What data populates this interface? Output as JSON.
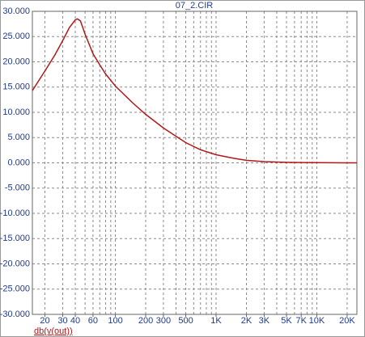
{
  "chart_data": {
    "type": "line",
    "title": "07_2.CIR",
    "x_label": "db(v(out))",
    "x_scale": "log",
    "grid": true,
    "xlim": [
      15,
      25000
    ],
    "ylim": [
      -30,
      30
    ],
    "xticks": [
      20,
      30,
      40,
      60,
      100,
      200,
      300,
      500,
      {
        "value": 1000,
        "label": "1K"
      },
      {
        "value": 2000,
        "label": "2K"
      },
      {
        "value": 3000,
        "label": "3K"
      },
      {
        "value": 5000,
        "label": "5K"
      },
      {
        "value": 7000,
        "label": "7K"
      },
      {
        "value": 10000,
        "label": "10K"
      },
      {
        "value": 20000,
        "label": "20K"
      }
    ],
    "xgrid": [
      20,
      30,
      40,
      50,
      60,
      70,
      80,
      90,
      100,
      200,
      300,
      400,
      500,
      600,
      700,
      800,
      900,
      1000,
      2000,
      3000,
      4000,
      5000,
      6000,
      7000,
      8000,
      9000,
      10000,
      20000
    ],
    "yticks": [
      {
        "value": 30,
        "label": "30.000"
      },
      {
        "value": 25,
        "label": "25.000"
      },
      {
        "value": 20,
        "label": "20.000"
      },
      {
        "value": 15,
        "label": "15.000"
      },
      {
        "value": 10,
        "label": "10.000"
      },
      {
        "value": 5,
        "label": "5.000"
      },
      {
        "value": 0,
        "label": "0.000"
      },
      {
        "value": -5,
        "label": "-5.000"
      },
      {
        "value": -10,
        "label": "-10.000"
      },
      {
        "value": -15,
        "label": "-15.000"
      },
      {
        "value": -20,
        "label": "-20.000"
      },
      {
        "value": -25,
        "label": "-25.000"
      },
      {
        "value": -30,
        "label": "-30.000"
      }
    ],
    "x": [
      15,
      20,
      25,
      30,
      35,
      40,
      42,
      45,
      50,
      60,
      70,
      80,
      100,
      150,
      200,
      300,
      500,
      700,
      1000,
      1500,
      2000,
      3000,
      5000,
      10000,
      20000,
      25000
    ],
    "series": [
      {
        "color": "#b01818",
        "values": [
          14.3,
          18.2,
          21.3,
          24.2,
          26.8,
          28.3,
          28.5,
          28.1,
          25.5,
          21.6,
          19.4,
          17.6,
          15.2,
          11.8,
          9.6,
          6.9,
          4.0,
          2.6,
          1.6,
          0.9,
          0.5,
          0.25,
          0.1,
          0.03,
          0.01,
          0.0
        ]
      }
    ]
  }
}
